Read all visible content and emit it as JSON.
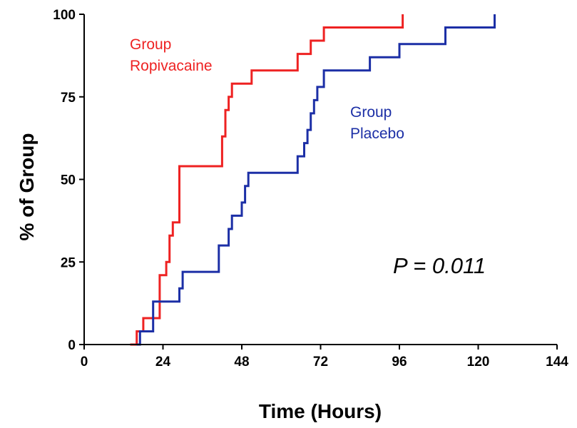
{
  "chart_data": {
    "type": "line",
    "step": true,
    "xlabel": "Time (Hours)",
    "ylabel": "% of Group",
    "xlim": [
      0,
      144
    ],
    "ylim": [
      0,
      100
    ],
    "xticks": [
      0,
      24,
      48,
      72,
      96,
      120,
      144
    ],
    "yticks": [
      0,
      25,
      50,
      75,
      100
    ],
    "grid": false,
    "annotation": "P = 0.011",
    "series": [
      {
        "name": "Group Ropivacaine",
        "label_lines": [
          "Group",
          "Ropivacaine"
        ],
        "color": "#ee2222",
        "x": [
          14,
          16,
          18,
          22,
          23,
          25,
          26,
          27,
          29,
          42,
          43,
          44,
          45,
          46,
          51,
          65,
          69,
          73,
          97,
          97
        ],
        "y": [
          0,
          4,
          8,
          8,
          21,
          25,
          33,
          37,
          54,
          63,
          71,
          75,
          79,
          79,
          83,
          88,
          92,
          96,
          96,
          100
        ]
      },
      {
        "name": "Group Placebo",
        "label_lines": [
          "Group",
          "Placebo"
        ],
        "color": "#1c2fa6",
        "x": [
          16,
          17,
          20,
          21,
          28,
          29,
          30,
          41,
          44,
          45,
          46,
          48,
          49,
          50,
          51,
          65,
          67,
          68,
          69,
          70,
          71,
          72,
          73,
          75,
          87,
          96,
          110,
          125
        ],
        "y": [
          0,
          4,
          4,
          13,
          13,
          17,
          22,
          30,
          35,
          39,
          39,
          43,
          48,
          52,
          52,
          57,
          61,
          65,
          70,
          74,
          78,
          78,
          83,
          83,
          87,
          91,
          96,
          100
        ]
      }
    ]
  }
}
